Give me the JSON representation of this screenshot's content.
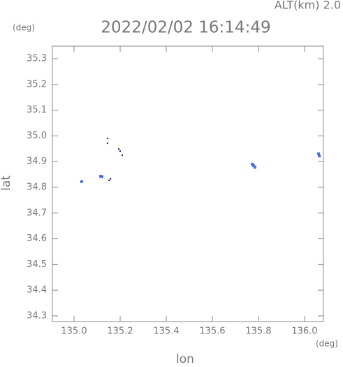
{
  "chart_data": {
    "type": "scatter",
    "title": "2022/02/02 16:14:49",
    "altitude_label": "ALT(km) 2.0",
    "y_unit": "(deg)",
    "x_unit": "(deg)",
    "x_label": "lon",
    "y_label": "lat",
    "xlim": [
      134.906,
      136.082
    ],
    "ylim": [
      34.278,
      35.349
    ],
    "xticks": [
      {
        "value": 135.0,
        "label": "135.0"
      },
      {
        "value": 135.2,
        "label": "135.2"
      },
      {
        "value": 135.4,
        "label": "135.4"
      },
      {
        "value": 135.6,
        "label": "135.6"
      },
      {
        "value": 135.8,
        "label": "135.8"
      },
      {
        "value": 136.0,
        "label": "136.0"
      }
    ],
    "yticks": [
      34.3,
      34.4,
      34.5,
      34.6,
      34.7,
      34.8,
      34.9,
      {
        "value": 35.0,
        "label": "35.0"
      },
      35.1,
      35.2,
      35.3
    ],
    "series": [
      {
        "color": "#4a6fe3",
        "size": 4,
        "x": [
          135.033,
          135.115,
          135.121,
          135.773,
          135.779,
          135.785,
          136.061,
          136.064
        ],
        "y": [
          34.822,
          34.843,
          34.841,
          34.89,
          34.884,
          34.878,
          34.93,
          34.922
        ]
      },
      {
        "color": "#1a1a60",
        "size": 2,
        "x": [
          135.145,
          135.145,
          135.194,
          135.2,
          135.209,
          135.158,
          135.152
        ],
        "y": [
          34.99,
          34.971,
          34.949,
          34.941,
          34.925,
          34.833,
          34.827
        ]
      }
    ]
  }
}
